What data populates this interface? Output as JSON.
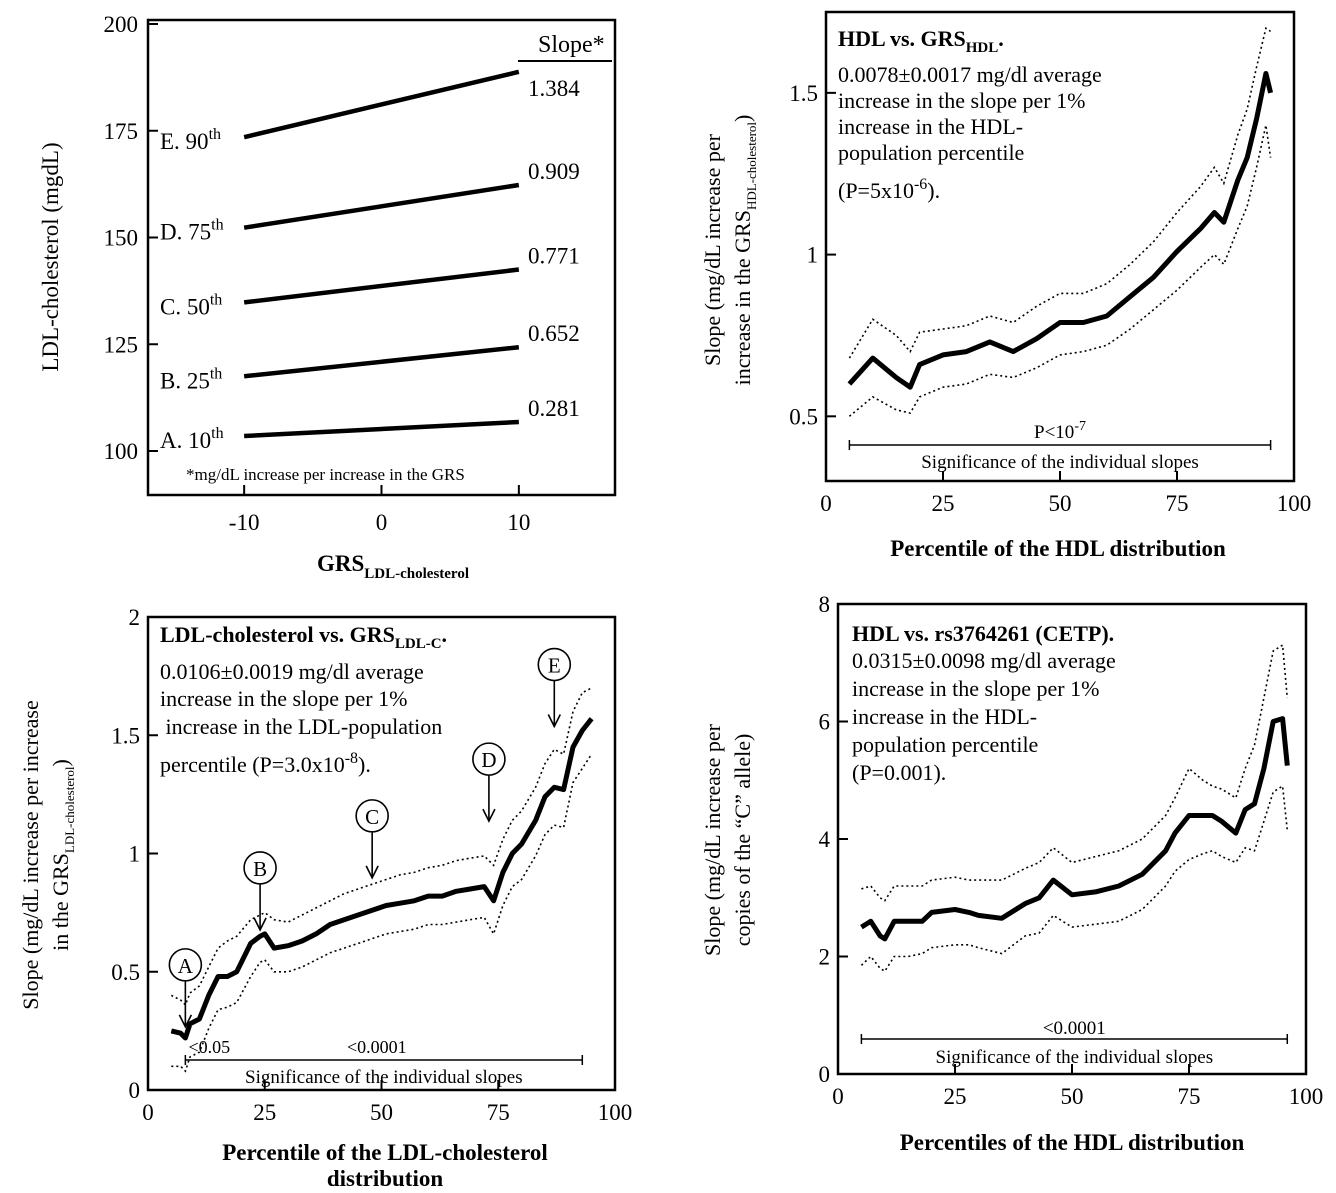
{
  "chart_data": [
    {
      "panel": "top-left",
      "type": "line",
      "xlabel": "GRS",
      "xlabel_sub": "LDL-cholesterol",
      "ylabel": "LDL-cholesterol (mgdL)",
      "xlim": [
        -17,
        17
      ],
      "ylim": [
        100,
        200
      ],
      "x_ticks": [
        -10,
        0,
        10
      ],
      "y_ticks": [
        100,
        125,
        150,
        175,
        200
      ],
      "slope_header": "Slope*",
      "footnote": "*mg/dL increase per increase in the GRS",
      "grid": false,
      "series": [
        {
          "label": "A. 10",
          "sup": "th",
          "x": [
            -10,
            10
          ],
          "y": [
            103.5,
            106.8
          ],
          "slope": "0.281"
        },
        {
          "label": "B. 25",
          "sup": "th",
          "x": [
            -10,
            10
          ],
          "y": [
            117.5,
            124.3
          ],
          "slope": "0.652"
        },
        {
          "label": "C. 50",
          "sup": "th",
          "x": [
            -10,
            10
          ],
          "y": [
            134.8,
            142.5
          ],
          "slope": "0.771"
        },
        {
          "label": "D. 75",
          "sup": "th",
          "x": [
            -10,
            10
          ],
          "y": [
            152.3,
            162.3
          ],
          "slope": "0.909"
        },
        {
          "label": "E. 90",
          "sup": "th",
          "x": [
            -10,
            10
          ],
          "y": [
            173.5,
            188.8
          ],
          "slope": "1.384"
        }
      ]
    },
    {
      "panel": "top-right",
      "type": "line",
      "title": "HDL vs. GRS",
      "title_sub": "HDL",
      "title_end": ".",
      "note_lines": [
        "0.0078±0.0017 mg/dl average",
        "increase in the slope per 1%",
        "increase in the HDL-",
        "population percentile"
      ],
      "note_p": "(P=5x10",
      "note_p_sup": "-6",
      "note_p_end": ").",
      "xlabel": "Percentile of the HDL distribution",
      "ylabel_line1": "Slope (mg/dL increase per",
      "ylabel_line2": "increase in the GRS",
      "ylabel_sub": "HDL-cholesterol",
      "ylabel_end": ")",
      "xlim": [
        0,
        100
      ],
      "ylim": [
        0.3,
        1.75
      ],
      "x_ticks": [
        0,
        25,
        50,
        75,
        100
      ],
      "y_ticks": [
        0.5,
        1,
        1.5
      ],
      "sig_range": [
        5,
        95
      ],
      "sig_text": "P<10",
      "sig_sup": "-7",
      "sig_label": "Significance of the individual slopes",
      "grid": false,
      "x": [
        5,
        10,
        15,
        18,
        20,
        25,
        30,
        35,
        40,
        45,
        50,
        55,
        60,
        65,
        70,
        75,
        80,
        83,
        85,
        88,
        90,
        92,
        94,
        95
      ],
      "slope": [
        0.6,
        0.68,
        0.62,
        0.59,
        0.66,
        0.69,
        0.7,
        0.73,
        0.7,
        0.74,
        0.79,
        0.79,
        0.81,
        0.87,
        0.93,
        1.01,
        1.08,
        1.13,
        1.1,
        1.23,
        1.3,
        1.42,
        1.56,
        1.5
      ],
      "upper": [
        0.68,
        0.8,
        0.75,
        0.7,
        0.76,
        0.77,
        0.78,
        0.81,
        0.79,
        0.84,
        0.88,
        0.88,
        0.91,
        0.97,
        1.04,
        1.13,
        1.21,
        1.27,
        1.22,
        1.37,
        1.45,
        1.58,
        1.7,
        1.69
      ],
      "lower": [
        0.5,
        0.56,
        0.52,
        0.51,
        0.56,
        0.59,
        0.6,
        0.63,
        0.62,
        0.65,
        0.69,
        0.7,
        0.72,
        0.77,
        0.83,
        0.89,
        0.96,
        1.0,
        0.97,
        1.08,
        1.15,
        1.27,
        1.4,
        1.3
      ]
    },
    {
      "panel": "bottom-left",
      "type": "line",
      "title": "LDL-cholesterol vs. GRS",
      "title_sub": "LDL-C",
      "title_end": ".",
      "note_lines": [
        "0.0106±0.0019 mg/dl  average",
        "increase in the slope per 1%",
        " increase in the LDL-population"
      ],
      "note_p": "percentile (P=3.0x10",
      "note_p_sup": "-8",
      "note_p_end": ").",
      "xlabel": "Percentile of the LDL-cholesterol",
      "xlabel2": "distribution",
      "ylabel_line1": "Slope (mg/dL increase per increase",
      "ylabel_line2": "in the GRS",
      "ylabel_sub": "LDL-cholesterol",
      "ylabel_end": ")",
      "xlim": [
        0,
        100
      ],
      "ylim": [
        0,
        2
      ],
      "x_ticks": [
        0,
        25,
        50,
        75,
        100
      ],
      "y_ticks": [
        0,
        0.5,
        1,
        1.5,
        2
      ],
      "sig_range": [
        8,
        93
      ],
      "sig_text_1": "<0.05",
      "sig_text_2": "<0.0001",
      "sig_label": "Significance of the individual slopes",
      "markers": [
        {
          "label": "A",
          "x": 8,
          "y": 0.25
        },
        {
          "label": "B",
          "x": 24,
          "y": 0.66
        },
        {
          "label": "C",
          "x": 48,
          "y": 0.88
        },
        {
          "label": "D",
          "x": 73,
          "y": 1.12
        },
        {
          "label": "E",
          "x": 87,
          "y": 1.52
        }
      ],
      "grid": false,
      "x": [
        5,
        7,
        8,
        9,
        11,
        13,
        15,
        17,
        19,
        22,
        24,
        25,
        27,
        30,
        33,
        36,
        39,
        42,
        45,
        48,
        51,
        54,
        57,
        60,
        63,
        66,
        69,
        72,
        74,
        76,
        78,
        80,
        83,
        85,
        87,
        89,
        91,
        93,
        95
      ],
      "slope": [
        0.25,
        0.24,
        0.22,
        0.28,
        0.3,
        0.4,
        0.48,
        0.48,
        0.5,
        0.62,
        0.65,
        0.66,
        0.6,
        0.61,
        0.63,
        0.66,
        0.7,
        0.72,
        0.74,
        0.76,
        0.78,
        0.79,
        0.8,
        0.82,
        0.82,
        0.84,
        0.85,
        0.86,
        0.8,
        0.92,
        1.0,
        1.04,
        1.14,
        1.24,
        1.28,
        1.27,
        1.45,
        1.52,
        1.57
      ],
      "upper": [
        0.4,
        0.38,
        0.36,
        0.41,
        0.44,
        0.52,
        0.6,
        0.63,
        0.65,
        0.72,
        0.74,
        0.75,
        0.72,
        0.71,
        0.74,
        0.77,
        0.8,
        0.83,
        0.85,
        0.87,
        0.89,
        0.91,
        0.92,
        0.94,
        0.95,
        0.97,
        0.98,
        0.99,
        0.95,
        1.06,
        1.14,
        1.18,
        1.28,
        1.38,
        1.44,
        1.42,
        1.6,
        1.68,
        1.7
      ],
      "lower": [
        0.1,
        0.1,
        0.08,
        0.14,
        0.16,
        0.26,
        0.34,
        0.35,
        0.37,
        0.48,
        0.54,
        0.55,
        0.5,
        0.5,
        0.52,
        0.55,
        0.58,
        0.6,
        0.62,
        0.64,
        0.66,
        0.67,
        0.68,
        0.7,
        0.7,
        0.71,
        0.72,
        0.73,
        0.66,
        0.78,
        0.86,
        0.89,
        0.99,
        1.08,
        1.12,
        1.11,
        1.3,
        1.36,
        1.42
      ]
    },
    {
      "panel": "bottom-right",
      "type": "line",
      "title": "HDL vs. rs3764261 (CETP).",
      "note_lines": [
        "0.0315±0.0098 mg/dl average",
        "increase in the slope per 1%",
        "increase in the HDL-",
        "population percentile",
        "(P=0.001)."
      ],
      "xlabel": "Percentiles of the HDL distribution",
      "ylabel_line1": "Slope (mg/dL increase per",
      "ylabel_line2": "copies of the “C” allele)",
      "xlim": [
        0,
        100
      ],
      "ylim": [
        0,
        8
      ],
      "x_ticks": [
        0,
        25,
        50,
        75,
        100
      ],
      "y_ticks": [
        0,
        2,
        4,
        6,
        8
      ],
      "sig_range": [
        5,
        96
      ],
      "sig_text": "<0.0001",
      "sig_label": "Significance of the individual slopes",
      "grid": false,
      "x": [
        5,
        7,
        9,
        10,
        12,
        15,
        18,
        20,
        25,
        28,
        30,
        35,
        40,
        43,
        46,
        50,
        55,
        60,
        65,
        70,
        72,
        75,
        78,
        80,
        82,
        85,
        87,
        89,
        91,
        93,
        95,
        96
      ],
      "slope": [
        2.5,
        2.6,
        2.35,
        2.3,
        2.6,
        2.6,
        2.6,
        2.75,
        2.8,
        2.75,
        2.7,
        2.65,
        2.9,
        3.0,
        3.3,
        3.05,
        3.1,
        3.2,
        3.4,
        3.8,
        4.1,
        4.4,
        4.4,
        4.4,
        4.3,
        4.1,
        4.5,
        4.6,
        5.2,
        6.0,
        6.05,
        5.25
      ],
      "upper": [
        3.15,
        3.2,
        3.0,
        2.95,
        3.2,
        3.2,
        3.2,
        3.3,
        3.35,
        3.3,
        3.3,
        3.3,
        3.5,
        3.6,
        3.85,
        3.6,
        3.7,
        3.8,
        4.0,
        4.4,
        4.7,
        5.2,
        5.0,
        4.9,
        4.85,
        4.7,
        5.2,
        5.6,
        6.4,
        7.2,
        7.3,
        6.4
      ],
      "lower": [
        1.85,
        2.0,
        1.8,
        1.75,
        2.0,
        2.0,
        2.05,
        2.15,
        2.2,
        2.2,
        2.15,
        2.05,
        2.35,
        2.4,
        2.7,
        2.5,
        2.55,
        2.6,
        2.8,
        3.2,
        3.45,
        3.65,
        3.75,
        3.8,
        3.7,
        3.6,
        3.85,
        3.8,
        4.3,
        4.8,
        4.9,
        4.15
      ]
    }
  ]
}
